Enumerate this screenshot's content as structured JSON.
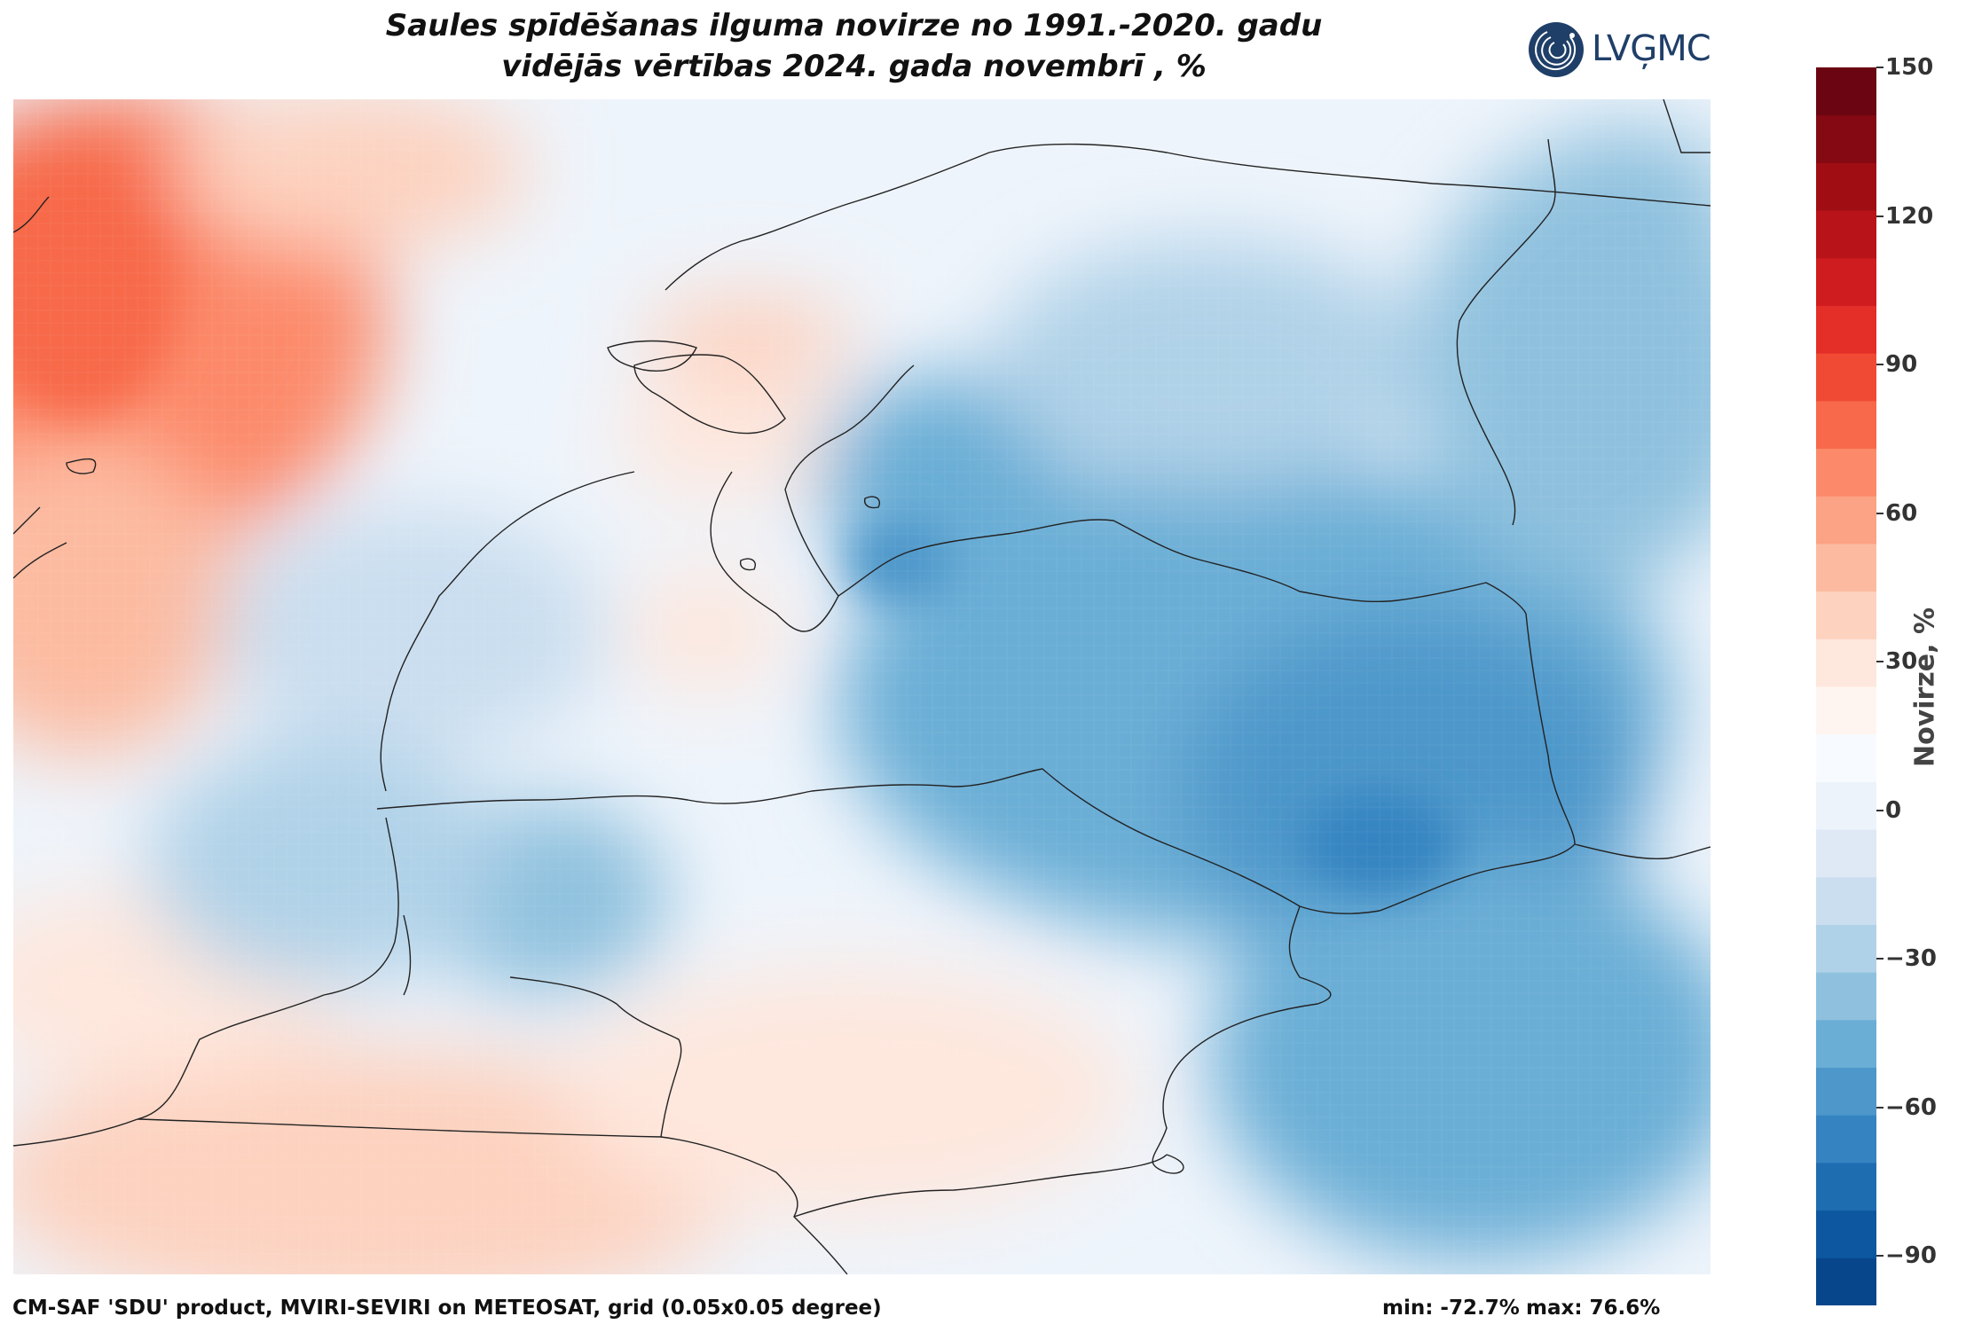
{
  "title": {
    "line1": "Saules spīdēšanas ilguma novirze no 1991.-2020. gadu",
    "line2": "vidējās vērtības 2024. gada novembrī , %"
  },
  "logo": {
    "text": "LVĢMC"
  },
  "footer": {
    "source": "CM-SAF 'SDU' product, MVIRI-SEVIRI on METEOSAT, grid (0.05x0.05 degree)",
    "min": "min: -72.7%",
    "max": "max: 76.6%"
  },
  "colorbar": {
    "label": "Novirze, %",
    "range": [
      -100,
      150
    ],
    "ticks": [
      "150",
      "120",
      "90",
      "60",
      "30",
      "0",
      "−30",
      "−60",
      "−90"
    ],
    "tick_values": [
      150,
      120,
      90,
      60,
      30,
      0,
      -30,
      -60,
      -90
    ],
    "colors": [
      "#08468c",
      "#0d57a1",
      "#1f6db1",
      "#3584c1",
      "#4d97ca",
      "#6aaed6",
      "#8fc1de",
      "#b0d2e8",
      "#cadeef",
      "#dee9f5",
      "#ecf3fb",
      "#f7fbff",
      "#fff5f0",
      "#fee7dd",
      "#fdd2bf",
      "#fcbba1",
      "#fca285",
      "#fc8a6a",
      "#f7694a",
      "#f14a34",
      "#e32f27",
      "#cf1c1f",
      "#b81318",
      "#a00e14",
      "#850913",
      "#6a0511"
    ]
  },
  "map": {
    "description_colors": {
      "negative": "#3584c1",
      "positive": "#fb7a5a"
    }
  }
}
